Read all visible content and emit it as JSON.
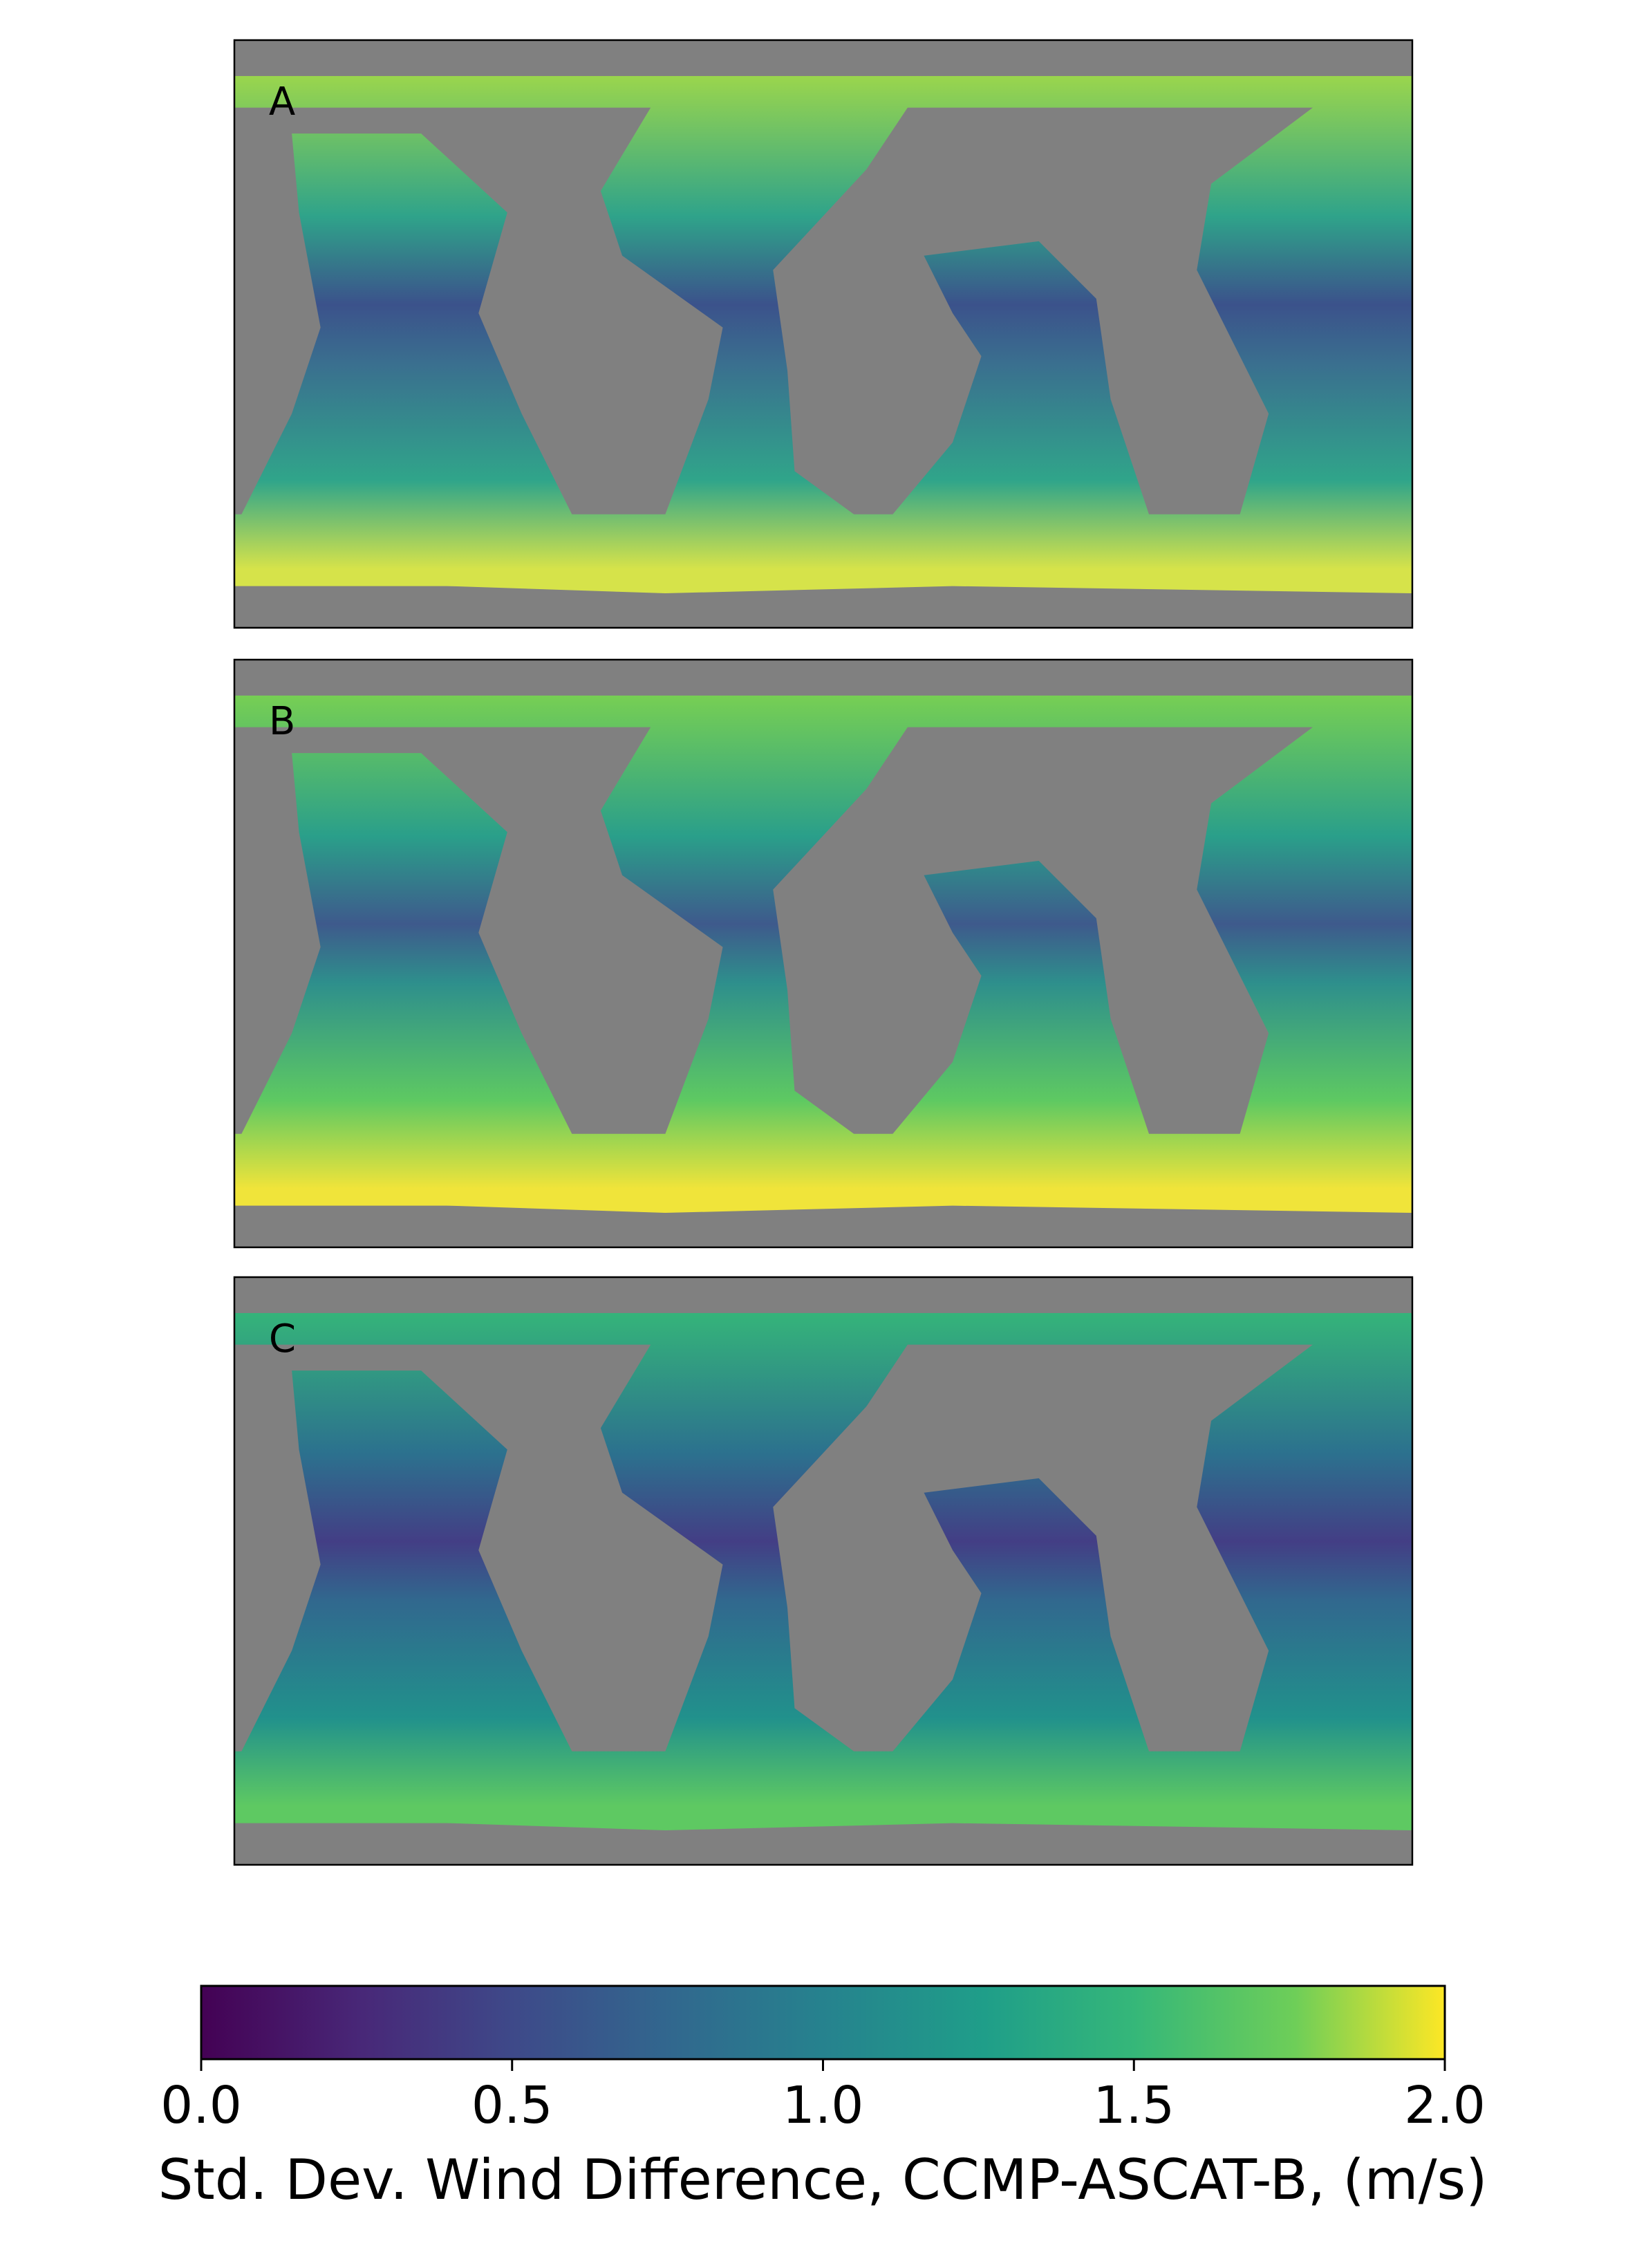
{
  "chart_data": {
    "type": "map",
    "panels": [
      "A",
      "B",
      "C"
    ],
    "colorbar": {
      "label": "Std. Dev. Wind Difference, CCMP-ASCAT-B, (m/s)",
      "clim": [
        0,
        2
      ],
      "ticks": [
        {
          "value": 0,
          "label": "0.0"
        },
        0.5,
        {
          "value": 1,
          "label": "1.0"
        },
        1.5,
        {
          "value": 2,
          "label": "2.0"
        }
      ],
      "colormap": "viridis"
    }
  }
}
